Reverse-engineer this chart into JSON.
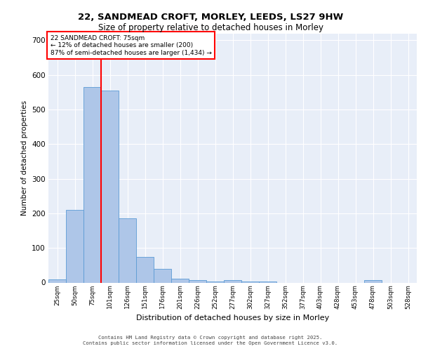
{
  "title_line1": "22, SANDMEAD CROFT, MORLEY, LEEDS, LS27 9HW",
  "title_line2": "Size of property relative to detached houses in Morley",
  "xlabel": "Distribution of detached houses by size in Morley",
  "ylabel": "Number of detached properties",
  "bar_color": "#aec6e8",
  "bar_edge_color": "#5b9bd5",
  "background_color": "#e8eef8",
  "grid_color": "#ffffff",
  "red_line_x": 2.5,
  "annotation_text": "22 SANDMEAD CROFT: 75sqm\n← 12% of detached houses are smaller (200)\n87% of semi-detached houses are larger (1,434) →",
  "footer_line1": "Contains HM Land Registry data © Crown copyright and database right 2025.",
  "footer_line2": "Contains public sector information licensed under the Open Government Licence v3.0.",
  "categories": [
    "25sqm",
    "50sqm",
    "75sqm",
    "101sqm",
    "126sqm",
    "151sqm",
    "176sqm",
    "201sqm",
    "226sqm",
    "252sqm",
    "277sqm",
    "302sqm",
    "327sqm",
    "352sqm",
    "377sqm",
    "403sqm",
    "428sqm",
    "453sqm",
    "478sqm",
    "503sqm",
    "528sqm"
  ],
  "values": [
    10,
    210,
    565,
    555,
    185,
    75,
    40,
    12,
    8,
    4,
    8,
    4,
    4,
    0,
    0,
    0,
    0,
    0,
    8,
    0,
    0
  ],
  "ylim": [
    0,
    720
  ],
  "yticks": [
    0,
    100,
    200,
    300,
    400,
    500,
    600,
    700
  ]
}
